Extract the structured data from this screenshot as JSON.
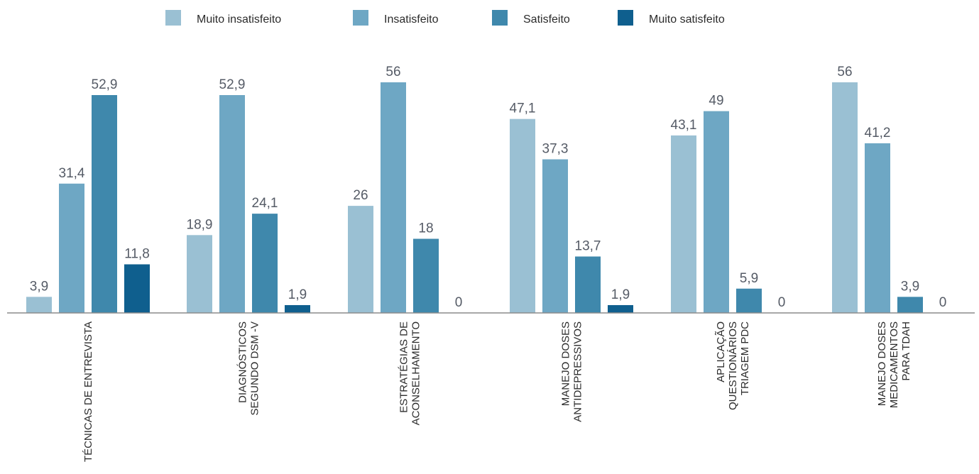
{
  "chart_data": {
    "type": "bar",
    "legend_position": "top",
    "grid": false,
    "ylim": [
      0,
      60
    ],
    "categories": [
      [
        "TÉCNICAS DE ENTREVISTA"
      ],
      [
        "DIAGNÓSTICOS",
        "SEGUNDO DSM -V"
      ],
      [
        "ESTRATÉGIAS DE",
        "ACONSELHAMENTO"
      ],
      [
        "MANEJO DOSES",
        "ANTIDEPRESSIVOS"
      ],
      [
        "APLICAÇÃO",
        "QUESTIONÁRIOS",
        "TRIAGEM PDC"
      ],
      [
        "MANEJO DOSES",
        "MEDICAMENTOS",
        "PARA TDAH"
      ]
    ],
    "series": [
      {
        "name": "Muito insatisfeito",
        "color": "#9ac0d3",
        "values": [
          3.9,
          18.9,
          26,
          47.1,
          43.1,
          56
        ],
        "labels": [
          "3,9",
          "18,9",
          "26",
          "47,1",
          "43,1",
          "56"
        ]
      },
      {
        "name": "Insatisfeito",
        "color": "#6ea7c4",
        "values": [
          31.4,
          52.9,
          56,
          37.3,
          49,
          41.2
        ],
        "labels": [
          "31,4",
          "52,9",
          "56",
          "37,3",
          "49",
          "41,2"
        ]
      },
      {
        "name": "Satisfeito",
        "color": "#3f88ac",
        "values": [
          52.9,
          24.1,
          18,
          13.7,
          5.9,
          3.9
        ],
        "labels": [
          "52,9",
          "24,1",
          "18",
          "13,7",
          "5,9",
          "3,9"
        ]
      },
      {
        "name": "Muito satisfeito",
        "color": "#0f5f8e",
        "values": [
          11.8,
          1.9,
          0,
          1.9,
          0,
          0
        ],
        "labels": [
          "11,8",
          "1,9",
          "0",
          "1,9",
          "0",
          "0"
        ]
      }
    ]
  }
}
